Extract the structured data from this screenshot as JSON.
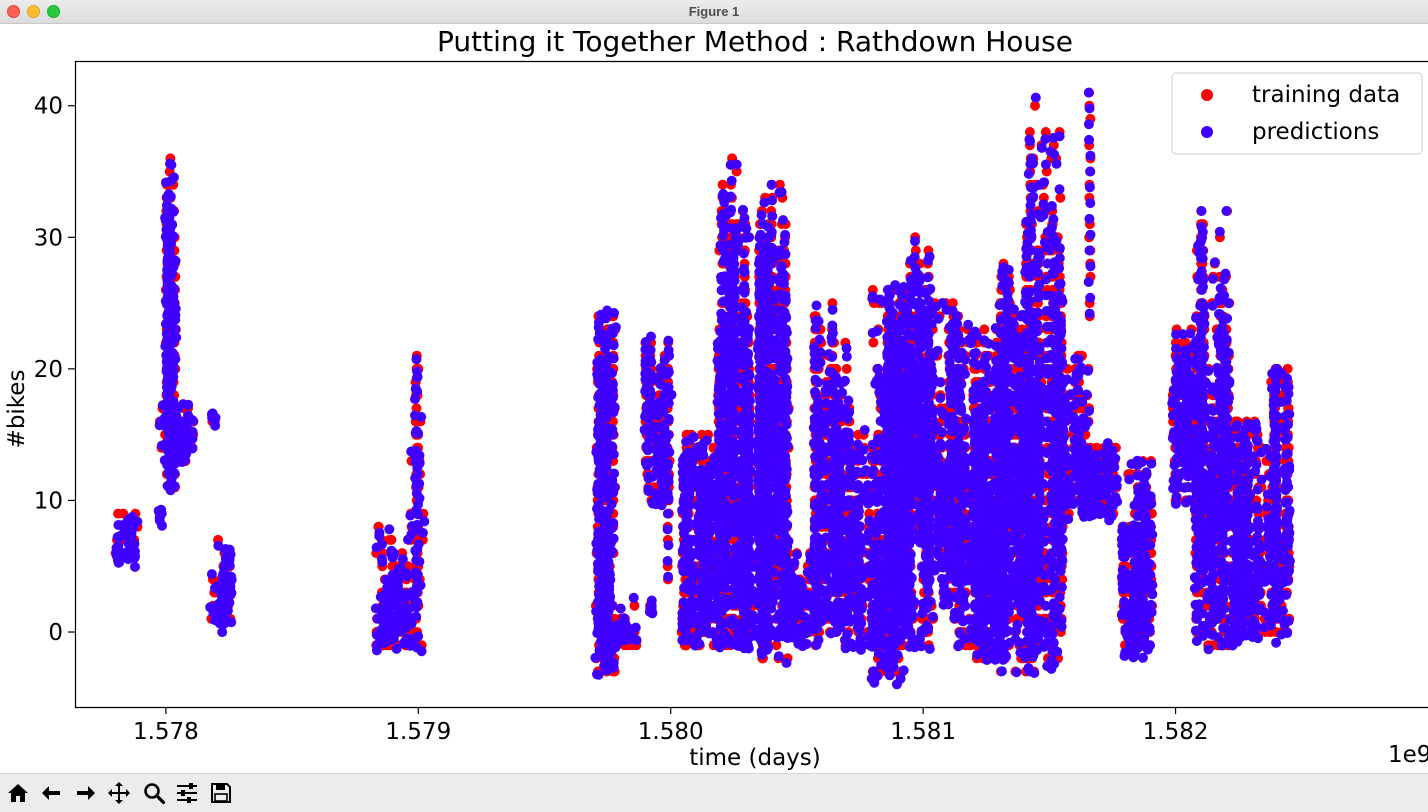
{
  "window": {
    "title": "Figure 1",
    "controls": [
      "close",
      "minimize",
      "maximize"
    ]
  },
  "toolbar": {
    "buttons": [
      {
        "name": "home",
        "icon": "home-icon"
      },
      {
        "name": "back",
        "icon": "arrow-left-icon"
      },
      {
        "name": "forward",
        "icon": "arrow-right-icon"
      },
      {
        "name": "pan",
        "icon": "move-icon"
      },
      {
        "name": "zoom",
        "icon": "magnifier-icon"
      },
      {
        "name": "configure-subplots",
        "icon": "sliders-icon"
      },
      {
        "name": "save",
        "icon": "save-icon"
      }
    ]
  },
  "chart_data": {
    "type": "scatter",
    "title": "Putting it Together Method : Rathdown House",
    "xlabel": "time (days)",
    "ylabel": "#bikes",
    "x_offset_label": "1e9",
    "xlim": [
      1.57764,
      1.583
    ],
    "ylim": [
      -5.7,
      43.4
    ],
    "xticks": [
      1.578,
      1.579,
      1.58,
      1.581,
      1.582
    ],
    "xtick_labels": [
      "1.578",
      "1.579",
      "1.580",
      "1.581",
      "1.582"
    ],
    "yticks": [
      0,
      10,
      20,
      30,
      40
    ],
    "ytick_labels": [
      "0",
      "10",
      "20",
      "30",
      "40"
    ],
    "grid": false,
    "legend": {
      "position": "top-right",
      "entries": [
        "training data",
        "predictions"
      ]
    },
    "colors": {
      "training data": "#ff0000",
      "predictions": "#3f00ff"
    },
    "seed": 20240,
    "note": "Dense per-timestamp series; data is given as clusters (x center, x spread, y min, y max, point count) that the renderer expands into individual points.",
    "clusters": [
      {
        "x": 1.57785,
        "w": 5e-05,
        "ymin": 5.5,
        "ymax": 9,
        "n": 30
      },
      {
        "x": 1.57798,
        "w": 5e-06,
        "ymin": 8.5,
        "ymax": 9,
        "n": 3
      },
      {
        "x": 1.57802,
        "w": 2e-05,
        "ymin": 11,
        "ymax": 35.5,
        "n": 70
      },
      {
        "x": 1.57804,
        "w": 7e-05,
        "ymin": 13,
        "ymax": 17,
        "n": 50
      },
      {
        "x": 1.57819,
        "w": 5e-06,
        "ymin": 16,
        "ymax": 16.5,
        "n": 3
      },
      {
        "x": 1.57822,
        "w": 4e-05,
        "ymin": 0.5,
        "ymax": 7,
        "n": 40
      },
      {
        "x": 1.57888,
        "w": 5e-05,
        "ymin": -1,
        "ymax": 8,
        "n": 40
      },
      {
        "x": 1.57894,
        "w": 4e-05,
        "ymin": -1,
        "ymax": 6,
        "n": 25
      },
      {
        "x": 1.57899,
        "w": 3e-05,
        "ymin": -1,
        "ymax": 21,
        "n": 20
      },
      {
        "x": 1.57974,
        "w": 4e-05,
        "ymin": -3,
        "ymax": 24.5,
        "n": 70
      },
      {
        "x": 1.57981,
        "w": 6e-05,
        "ymin": -1,
        "ymax": 2.5,
        "n": 20
      },
      {
        "x": 1.57992,
        "w": 5e-06,
        "ymin": 2,
        "ymax": 2,
        "n": 2
      },
      {
        "x": 1.57995,
        "w": 5e-05,
        "ymin": 10,
        "ymax": 22,
        "n": 60
      },
      {
        "x": 1.58012,
        "w": 8e-05,
        "ymin": -1,
        "ymax": 15,
        "n": 120
      },
      {
        "x": 1.58025,
        "w": 6e-05,
        "ymin": -1,
        "ymax": 35.5,
        "n": 110
      },
      {
        "x": 1.58033,
        "w": 6e-05,
        "ymin": -1,
        "ymax": 23,
        "n": 90
      },
      {
        "x": 1.58041,
        "w": 6e-05,
        "ymin": -2,
        "ymax": 34,
        "n": 110
      },
      {
        "x": 1.58052,
        "w": 8e-05,
        "ymin": -0.5,
        "ymax": 6,
        "n": 70
      },
      {
        "x": 1.58064,
        "w": 7e-05,
        "ymin": -1,
        "ymax": 24.5,
        "n": 90
      },
      {
        "x": 1.58076,
        "w": 7e-05,
        "ymin": -1,
        "ymax": 15,
        "n": 80
      },
      {
        "x": 1.58086,
        "w": 6e-05,
        "ymin": -3.5,
        "ymax": 26.5,
        "n": 120
      },
      {
        "x": 1.58097,
        "w": 7e-05,
        "ymin": -1,
        "ymax": 29.7,
        "n": 110
      },
      {
        "x": 1.58107,
        "w": 7e-05,
        "ymin": 2.5,
        "ymax": 26,
        "n": 90
      },
      {
        "x": 1.58118,
        "w": 6e-05,
        "ymin": -1,
        "ymax": 24,
        "n": 90
      },
      {
        "x": 1.58127,
        "w": 6e-05,
        "ymin": -2,
        "ymax": 23,
        "n": 90
      },
      {
        "x": 1.58137,
        "w": 7e-05,
        "ymin": -3,
        "ymax": 28,
        "n": 90
      },
      {
        "x": 1.58148,
        "w": 7e-05,
        "ymin": -2.5,
        "ymax": 41,
        "n": 120
      },
      {
        "x": 1.58159,
        "w": 7e-05,
        "ymin": 9,
        "ymax": 21,
        "n": 70
      },
      {
        "x": 1.5817,
        "w": 7e-05,
        "ymin": 9,
        "ymax": 14,
        "n": 70
      },
      {
        "x": 1.58185,
        "w": 6e-05,
        "ymin": -1.5,
        "ymax": 13,
        "n": 80
      },
      {
        "x": 1.58205,
        "w": 6e-05,
        "ymin": 10,
        "ymax": 23,
        "n": 80
      },
      {
        "x": 1.58215,
        "w": 7e-05,
        "ymin": -1,
        "ymax": 32,
        "n": 100
      },
      {
        "x": 1.58228,
        "w": 6e-05,
        "ymin": -0.5,
        "ymax": 16,
        "n": 90
      },
      {
        "x": 1.5824,
        "w": 5e-05,
        "ymin": -0.5,
        "ymax": 20,
        "n": 60
      }
    ],
    "peaks": [
      {
        "x": 1.57802,
        "y": 35.5
      },
      {
        "x": 1.57999,
        "y": 21
      },
      {
        "x": 1.58024,
        "y": 35.5
      },
      {
        "x": 1.5804,
        "y": 34
      },
      {
        "x": 1.58064,
        "y": 24.5
      },
      {
        "x": 1.58086,
        "y": 26
      },
      {
        "x": 1.58097,
        "y": 29.7
      },
      {
        "x": 1.58149,
        "y": 30.4
      },
      {
        "x": 1.58166,
        "y": 41
      },
      {
        "x": 1.5821,
        "y": 32
      },
      {
        "x": 1.5824,
        "y": 20
      }
    ]
  }
}
